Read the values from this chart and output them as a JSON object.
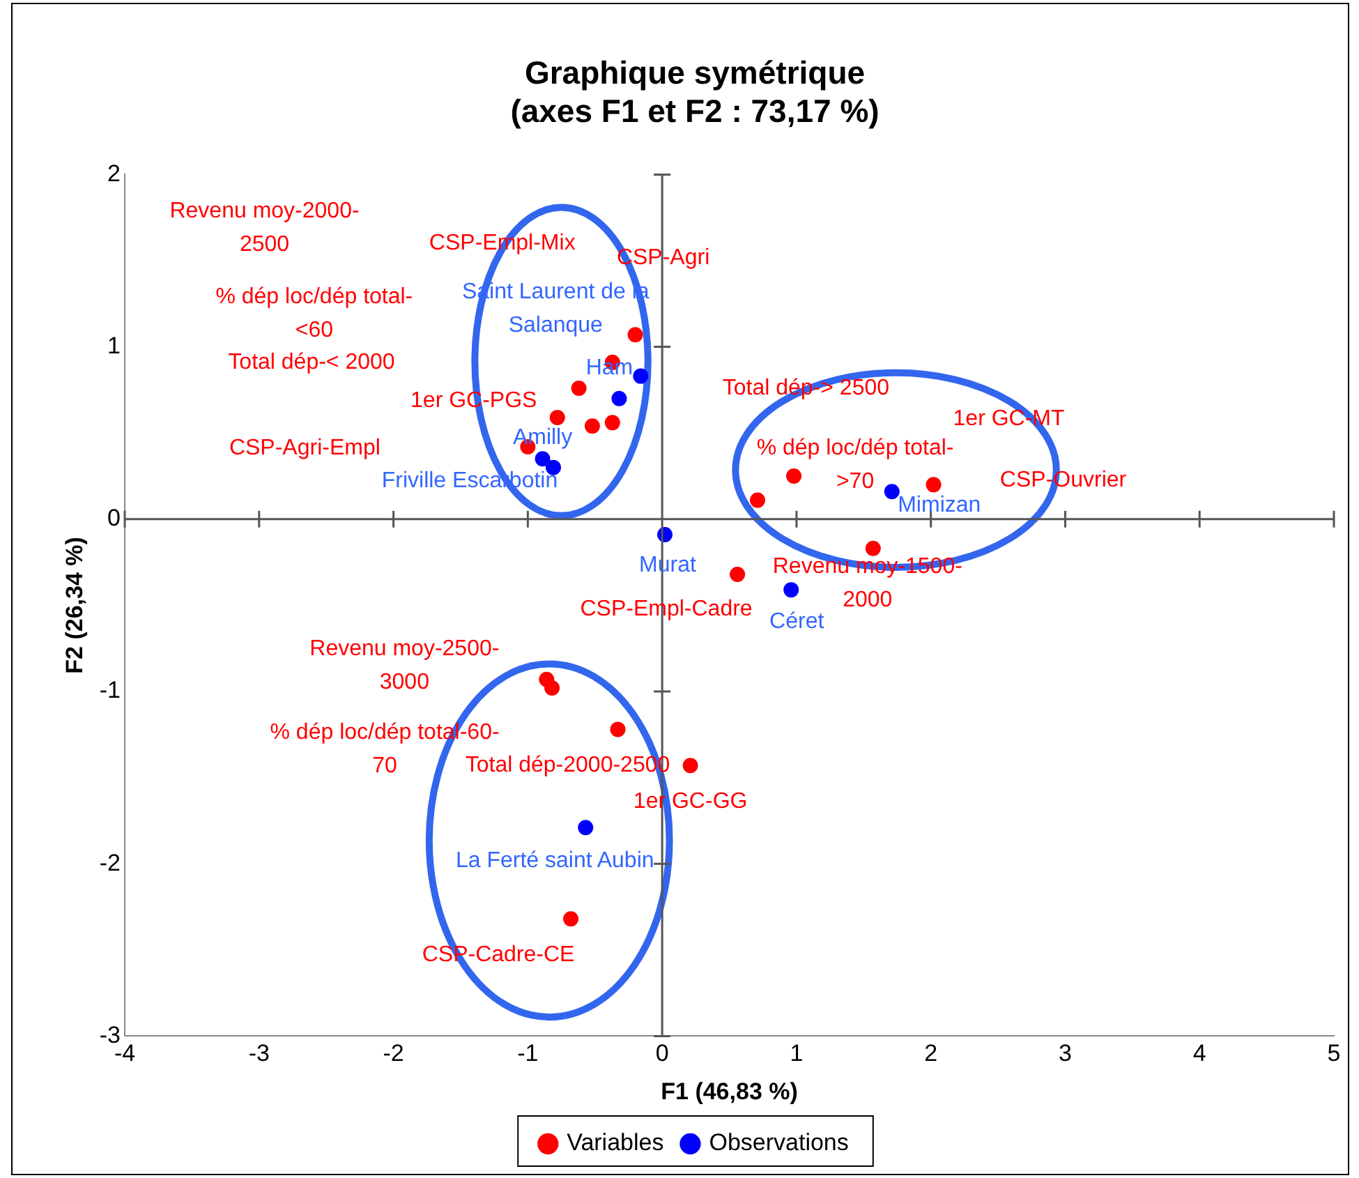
{
  "chart_data": {
    "type": "scatter",
    "title": "Graphique symétrique\n(axes F1 et F2 : 73,17 %)",
    "xlabel": "F1 (46,83 %)",
    "ylabel": "F2 (26,34 %)",
    "xlim": [
      -4,
      5
    ],
    "xticks": [
      -4,
      -3,
      -2,
      -1,
      0,
      1,
      2,
      3,
      4,
      5
    ],
    "ylim": [
      -3,
      2
    ],
    "yticks": [
      -3,
      -2,
      -1,
      0,
      1,
      2
    ],
    "legend": "bottom",
    "marker": "circle",
    "series": [
      {
        "name": "Variables",
        "color": "#ff0000",
        "x": [
          -0.2,
          -0.37,
          -0.62,
          -0.78,
          -0.52,
          -0.37,
          -1.0,
          0.71,
          0.98,
          2.02,
          1.57,
          0.56,
          -0.86,
          -0.82,
          -0.33,
          0.21,
          -0.68
        ],
        "values": [
          1.07,
          0.91,
          0.76,
          0.59,
          0.54,
          0.56,
          0.42,
          0.11,
          0.25,
          0.2,
          -0.17,
          -0.32,
          -0.93,
          -0.98,
          -1.22,
          -1.43,
          -2.32
        ]
      },
      {
        "name": "Observations",
        "color": "#0000ff",
        "x": [
          -0.16,
          -0.32,
          -0.89,
          -0.81,
          1.71,
          0.02,
          0.96,
          -0.57
        ],
        "values": [
          0.83,
          0.7,
          0.35,
          0.3,
          0.16,
          -0.09,
          -0.41,
          -1.79
        ]
      }
    ],
    "annotations": [
      "Revenu moy-2000-\n2500",
      "CSP-Empl-Mix",
      {
        "text": "CSP-Agri",
        "x": -0.2,
        "y": 1.07
      },
      "% dép loc/dép total-\n<60",
      "Total dép-< 2000",
      {
        "text": "1er GC-PGS",
        "x": -0.78,
        "y": 0.59
      },
      "CSP-Agri-Empl",
      "Total dép-> 2500",
      {
        "text": "1er GC-MT",
        "x": 2.02,
        "y": 0.2
      },
      {
        "text": "% dép loc/dép total-\n>70",
        "x": 0.98,
        "y": 0.25
      },
      {
        "text": "CSP-Ouvrier",
        "x": 2.02,
        "y": 0.2
      },
      {
        "text": "Revenu moy-1500-\n2000",
        "x": 1.57,
        "y": -0.17
      },
      {
        "text": "CSP-Empl-Cadre",
        "x": 0.56,
        "y": -0.32
      },
      {
        "text": "Revenu moy-2500-\n3000",
        "x": -0.86,
        "y": -0.93
      },
      {
        "text": "% dép loc/dép total-60-\n70",
        "x": -0.82,
        "y": -0.98
      },
      {
        "text": "Total dép-2000-2500",
        "x": -0.33,
        "y": -1.22
      },
      {
        "text": "1er GC-GG",
        "x": 0.21,
        "y": -1.43
      },
      {
        "text": "CSP-Cadre-CE",
        "x": -0.68,
        "y": -2.32
      },
      {
        "text": "Saint Laurent de la\nSalanque",
        "x": -0.16,
        "y": 0.83
      },
      {
        "text": "Ham",
        "x": -0.32,
        "y": 0.7
      },
      {
        "text": "Amilly",
        "x": -0.89,
        "y": 0.35
      },
      {
        "text": "Friville Escarbotin",
        "x": -0.81,
        "y": 0.3
      },
      {
        "text": "Mimizan",
        "x": 1.71,
        "y": 0.16
      },
      {
        "text": "Murat",
        "x": 0.02,
        "y": -0.09
      },
      {
        "text": "Céret",
        "x": 0.96,
        "y": -0.41
      },
      {
        "text": "La Ferté saint Aubin",
        "x": -0.57,
        "y": -1.79
      }
    ]
  }
}
